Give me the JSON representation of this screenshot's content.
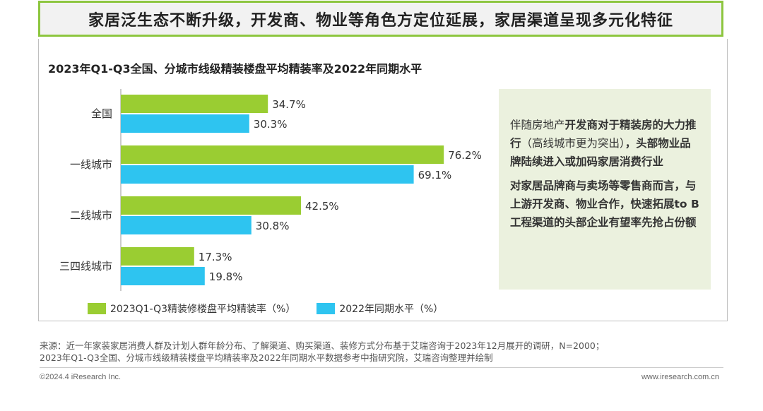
{
  "header": {
    "title": "家居泛生态不断升级，开发商、物业等角色方定位延展，家居渠道呈现多元化特征"
  },
  "chart_data": {
    "type": "bar",
    "orientation": "horizontal",
    "title": "2023年Q1-Q3全国、分城市线级精装楼盘平均精装率及2022年同期水平",
    "categories": [
      "全国",
      "一线城市",
      "二线城市",
      "三四线城市"
    ],
    "series": [
      {
        "name": "2023Q1-Q3精装修楼盘平均精装率（%）",
        "values": [
          34.7,
          76.2,
          42.5,
          17.3
        ],
        "labels": [
          "34.7%",
          "76.2%",
          "42.5%",
          "17.3%"
        ],
        "color": "#9acd32"
      },
      {
        "name": "2022年同期水平（%）",
        "values": [
          30.3,
          69.1,
          30.8,
          19.8
        ],
        "labels": [
          "30.3%",
          "69.1%",
          "30.8%",
          "19.8%"
        ],
        "color": "#2ec4f0"
      }
    ],
    "xlim": [
      0,
      100
    ],
    "grid": false,
    "legend_position": "bottom"
  },
  "note": {
    "p1": [
      {
        "text": "伴随房地产",
        "bold": false
      },
      {
        "text": "开发商对于精装房的大力推行",
        "bold": true
      },
      {
        "text": "（高线城市更为突出）",
        "bold": false
      },
      {
        "text": "，头部物业品牌陆续进入或加码家居消费行业",
        "bold": true
      }
    ],
    "p2": "对家居品牌商与卖场等零售商而言，与上游开发商、物业合作，快速拓展to B工程渠道的头部企业有望率先抢占份额"
  },
  "footer": {
    "source_line1": "来源：近一年家装家居消费人群及计划人群年龄分布、了解渠道、购买渠道、装修方式分布基于艾瑞咨询于2023年12月展开的调研，N=2000；",
    "source_line2": "2023年Q1-Q3全国、分城市线级精装楼盘平均精装率及2022年同期水平数据参考中指研究院，艾瑞咨询整理并绘制",
    "copyright": "©2024.4 iResearch Inc.",
    "website": "www.iresearch.com.cn"
  }
}
